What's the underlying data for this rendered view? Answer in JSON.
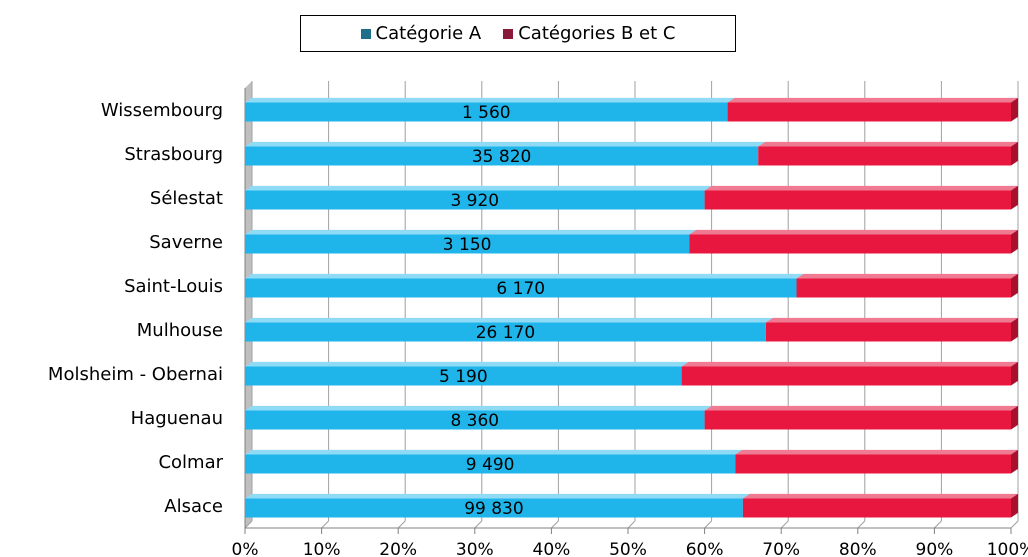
{
  "chart_data": {
    "type": "bar",
    "orientation": "horizontal",
    "stacked": "percent",
    "categories": [
      "Wissembourg",
      "Strasbourg",
      "Sélestat",
      "Saverne",
      "Saint-Louis",
      "Mulhouse",
      "Molsheim - Obernai",
      "Haguenau",
      "Colmar",
      "Alsace"
    ],
    "series": [
      {
        "name": "Catégorie A",
        "color": "#1fb5ea",
        "legend_color": "#1f6f8b",
        "values": [
          63,
          67,
          60,
          58,
          72,
          68,
          57,
          60,
          64,
          65
        ]
      },
      {
        "name": "Catégories B et C",
        "color": "#e8173f",
        "legend_color": "#8b1a3a",
        "values": [
          37,
          33,
          40,
          42,
          28,
          32,
          43,
          40,
          36,
          35
        ]
      }
    ],
    "data_labels": [
      "1 560",
      "35 820",
      "3 920",
      "3 150",
      "6 170",
      "26 170",
      "5 190",
      "8 360",
      "9 490",
      "99 830"
    ],
    "x_ticks": [
      "0%",
      "10%",
      "20%",
      "30%",
      "40%",
      "50%",
      "60%",
      "70%",
      "80%",
      "90%",
      "100%"
    ],
    "xlim": [
      0,
      100
    ],
    "grid": true,
    "legend_position": "top"
  }
}
